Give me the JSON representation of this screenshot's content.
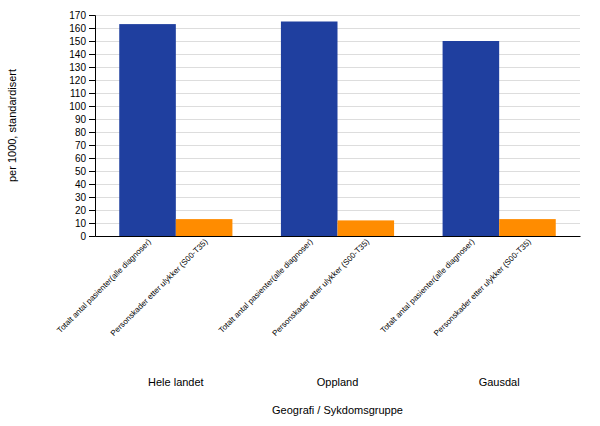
{
  "chart_data": {
    "type": "bar",
    "categories": [
      "Hele landet",
      "Oppland",
      "Gausdal"
    ],
    "series": [
      {
        "name": "Totalt antal pasienter(alle diagnoser)",
        "color": "#1F3F9F",
        "values": [
          163,
          165,
          150
        ]
      },
      {
        "name": "Personskader etter ulykker (S00-T35)",
        "color": "#FF8C00",
        "values": [
          13,
          12,
          13
        ]
      }
    ],
    "xlabel": "Geografi / Sykdomsgruppe",
    "ylabel": "per 1000, standardisert",
    "ylim": [
      0,
      170
    ],
    "yticks": [
      0,
      10,
      20,
      30,
      40,
      50,
      60,
      70,
      80,
      90,
      100,
      110,
      120,
      130,
      140,
      150,
      160,
      170
    ],
    "grid": true
  }
}
